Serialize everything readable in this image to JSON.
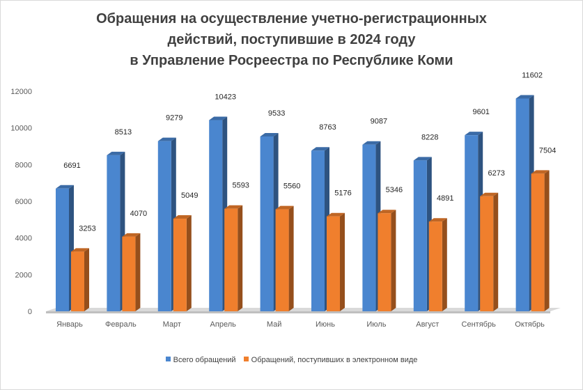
{
  "title_lines": [
    "Обращения на осуществление учетно-регистрационных",
    "действий, поступившие в 2024 году",
    "в Управление Росреестра по Республике Коми"
  ],
  "chart_data": {
    "type": "bar",
    "title": "Обращения на осуществление учетно-регистрационных действий, поступившие в 2024 году в Управление Росреестра по Республике Коми",
    "categories": [
      "Январь",
      "Февраль",
      "Март",
      "Апрель",
      "Май",
      "Июнь",
      "Июль",
      "Август",
      "Сентябрь",
      "Октябрь"
    ],
    "series": [
      {
        "name": "Всего обращений",
        "values": [
          6691,
          8513,
          9279,
          10423,
          9533,
          8763,
          9087,
          8228,
          9601,
          11602
        ],
        "color": "#4a86cf"
      },
      {
        "name": "Обращений, поступивших в электронном виде",
        "values": [
          3253,
          4070,
          5049,
          5593,
          5560,
          5176,
          5346,
          4891,
          6273,
          7504
        ],
        "color": "#f07f2d"
      }
    ],
    "yticks": [
      "0",
      "2000",
      "4000",
      "6000",
      "8000",
      "10000",
      "12000"
    ],
    "ylim": [
      0,
      12000
    ],
    "xlabel": "",
    "ylabel": "",
    "grid": false,
    "legend_position": "bottom",
    "style": "3d-column"
  }
}
